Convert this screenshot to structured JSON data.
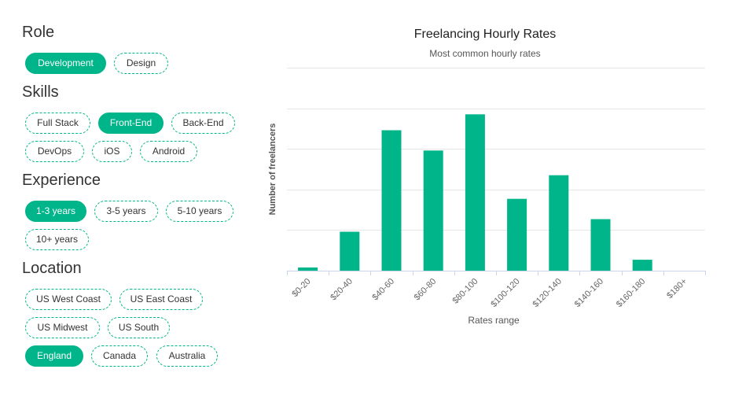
{
  "filters": {
    "role": {
      "title": "Role",
      "chips": [
        {
          "label": "Development",
          "selected": true
        },
        {
          "label": "Design",
          "selected": false
        }
      ]
    },
    "skills": {
      "title": "Skills",
      "chips": [
        {
          "label": "Full Stack",
          "selected": false
        },
        {
          "label": "Front-End",
          "selected": true
        },
        {
          "label": "Back-End",
          "selected": false
        },
        {
          "label": "DevOps",
          "selected": false
        },
        {
          "label": "iOS",
          "selected": false
        },
        {
          "label": "Android",
          "selected": false
        }
      ]
    },
    "experience": {
      "title": "Experience",
      "chips": [
        {
          "label": "1-3 years",
          "selected": true
        },
        {
          "label": "3-5 years",
          "selected": false
        },
        {
          "label": "5-10 years",
          "selected": false
        },
        {
          "label": "10+ years",
          "selected": false
        }
      ]
    },
    "location": {
      "title": "Location",
      "chips": [
        {
          "label": "US West Coast",
          "selected": false
        },
        {
          "label": "US East Coast",
          "selected": false
        },
        {
          "label": "US Midwest",
          "selected": false
        },
        {
          "label": "US South",
          "selected": false
        },
        {
          "label": "England",
          "selected": true
        },
        {
          "label": "Canada",
          "selected": false
        },
        {
          "label": "Australia",
          "selected": false
        }
      ]
    }
  },
  "colors": {
    "accent": "#00b589",
    "grid": "#e6e6e6",
    "axis": "#ccd6eb"
  },
  "chart_data": {
    "type": "bar",
    "title": "Freelancing Hourly Rates",
    "subtitle": "Most common hourly rates",
    "xlabel": "Rates range",
    "ylabel": "Number of freelancers",
    "categories": [
      "$0-20",
      "$20-40",
      "$40-60",
      "$60-80",
      "$80-100",
      "$100-120",
      "$120-140",
      "$140-160",
      "$160-180",
      "$180+"
    ],
    "values": [
      0.8,
      9.6,
      34.6,
      29.6,
      38.5,
      17.7,
      23.5,
      12.7,
      2.7,
      0
    ],
    "ylim": [
      0,
      50
    ],
    "grid": true,
    "legend": false
  }
}
